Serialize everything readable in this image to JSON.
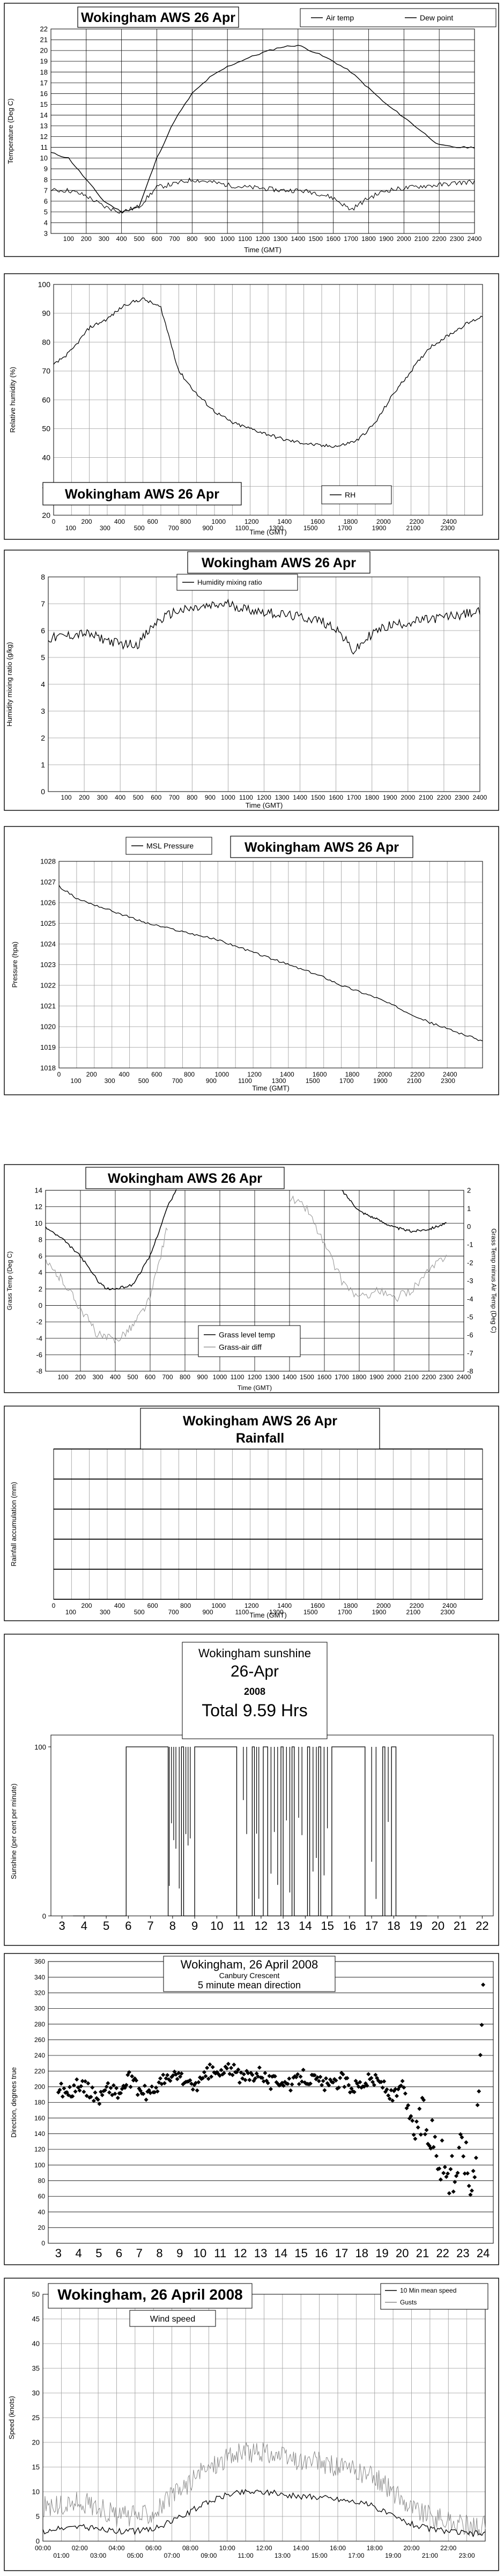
{
  "chart_data": [
    {
      "type": "line",
      "title": "Wokingham AWS 26 Apr",
      "xlabel": "Time (GMT)",
      "ylabel": "Temperature (Deg C)",
      "xlim": [
        0,
        2400
      ],
      "ylim": [
        3,
        22
      ],
      "xticks": [
        "100",
        "300",
        "500",
        "700",
        "900",
        "1100",
        "1300",
        "1500",
        "1700",
        "1900",
        "2100",
        "2300"
      ],
      "xticks2": [
        "200",
        "400",
        "600",
        "800",
        "1000",
        "1200",
        "1400",
        "1600",
        "1800",
        "2000",
        "2200",
        "2400"
      ],
      "yticks": [
        "3",
        "4",
        "5",
        "6",
        "7",
        "8",
        "9",
        "10",
        "11",
        "12",
        "13",
        "14",
        "15",
        "16",
        "17",
        "18",
        "19",
        "20",
        "21",
        "22"
      ],
      "grid": true,
      "legend_position": "top-right",
      "series": [
        {
          "name": "Air temp",
          "color": "#000000",
          "x": [
            0,
            100,
            200,
            300,
            400,
            500,
            600,
            700,
            800,
            900,
            1000,
            1100,
            1200,
            1300,
            1400,
            1500,
            1600,
            1700,
            1800,
            1900,
            2000,
            2100,
            2200,
            2300,
            2400
          ],
          "y": [
            10.5,
            10,
            8,
            6,
            5,
            5.5,
            10,
            13.5,
            16,
            17.5,
            18.5,
            19.2,
            19.8,
            20.3,
            20.5,
            19.8,
            19,
            18,
            16.5,
            15,
            13.8,
            12.5,
            11.2,
            11,
            11
          ]
        },
        {
          "name": "Dew point",
          "color": "#000000",
          "x": [
            0,
            100,
            200,
            300,
            400,
            500,
            600,
            700,
            800,
            900,
            1000,
            1100,
            1200,
            1300,
            1400,
            1500,
            1600,
            1700,
            1800,
            1900,
            2000,
            2100,
            2200,
            2300,
            2400
          ],
          "y": [
            7,
            7,
            6.5,
            5.5,
            5,
            5.5,
            7.3,
            7.6,
            8,
            7.8,
            7.5,
            7.3,
            7.2,
            7,
            7,
            6.8,
            6.3,
            5.2,
            6.3,
            7,
            7.2,
            7.4,
            7.5,
            7.7,
            7.8
          ]
        }
      ]
    },
    {
      "type": "line",
      "title": "Wokingham AWS 26 Apr",
      "xlabel": "Time (GMT)",
      "ylabel": "Relative humidity (%)",
      "xlim": [
        0,
        2400
      ],
      "ylim": [
        20,
        100
      ],
      "xticks": [
        "0",
        "100",
        "200",
        "300",
        "400",
        "500",
        "600",
        "700",
        "800",
        "900",
        "1000",
        "1100",
        "1200",
        "1300",
        "1400",
        "1500",
        "1600",
        "1700",
        "1800",
        "1900",
        "2000",
        "2100",
        "2200",
        "2300",
        "2400"
      ],
      "yticks": [
        "20",
        "30",
        "40",
        "50",
        "60",
        "70",
        "80",
        "90",
        "100"
      ],
      "grid": true,
      "legend_position": "bottom-center",
      "series": [
        {
          "name": "RH",
          "color": "#000000",
          "x": [
            0,
            100,
            200,
            300,
            400,
            500,
            600,
            700,
            800,
            900,
            1000,
            1100,
            1200,
            1300,
            1400,
            1500,
            1600,
            1700,
            1800,
            1900,
            2000,
            2100,
            2200,
            2300,
            2400
          ],
          "y": [
            72,
            77,
            85,
            88,
            93,
            95,
            92,
            70,
            62,
            56,
            52,
            50,
            48,
            46,
            45,
            44,
            44,
            46,
            52,
            62,
            70,
            78,
            82,
            86,
            89
          ]
        }
      ]
    },
    {
      "type": "line",
      "title": "Wokingham AWS 26 Apr",
      "xlabel": "Time (GMT)",
      "ylabel": "Humidity mixing ratio (g/kg)",
      "xlim": [
        0,
        2400
      ],
      "ylim": [
        0,
        8
      ],
      "xticks": [
        "100",
        "300",
        "500",
        "700",
        "900",
        "1100",
        "1300",
        "1500",
        "1700",
        "1900",
        "2100",
        "2300"
      ],
      "xticks2": [
        "200",
        "400",
        "600",
        "800",
        "1000",
        "1200",
        "1400",
        "1600",
        "1800",
        "2000",
        "2200",
        "2400"
      ],
      "yticks": [
        "0",
        "1",
        "2",
        "3",
        "4",
        "5",
        "6",
        "7",
        "8"
      ],
      "grid": true,
      "legend_position": "top-center",
      "series": [
        {
          "name": "Humidity mixing ratio",
          "color": "#000000",
          "x": [
            0,
            100,
            200,
            300,
            400,
            500,
            600,
            700,
            800,
            900,
            1000,
            1100,
            1200,
            1300,
            1400,
            1500,
            1600,
            1700,
            1800,
            1900,
            2000,
            2100,
            2200,
            2300,
            2400
          ],
          "y": [
            5.7,
            5.8,
            5.9,
            5.7,
            5.5,
            5.5,
            6.3,
            6.7,
            6.8,
            6.9,
            7,
            6.8,
            6.7,
            6.6,
            6.5,
            6.4,
            6.1,
            5.2,
            5.9,
            6.2,
            6.3,
            6.4,
            6.5,
            6.6,
            6.7
          ]
        }
      ]
    },
    {
      "type": "line",
      "title": "Wokingham AWS 26 Apr",
      "xlabel": "Time (GMT)",
      "ylabel": "Pressure (hpa)",
      "xlim": [
        0,
        2400
      ],
      "ylim": [
        1018,
        1028
      ],
      "xticks": [
        "0",
        "100",
        "200",
        "300",
        "400",
        "500",
        "600",
        "700",
        "800",
        "900",
        "1000",
        "1100",
        "1200",
        "1300",
        "1400",
        "1500",
        "1600",
        "1700",
        "1800",
        "1900",
        "2000",
        "2100",
        "2200",
        "2300",
        "2400"
      ],
      "yticks": [
        "1018",
        "1019",
        "1020",
        "1021",
        "1022",
        "1023",
        "1024",
        "1025",
        "1026",
        "1027",
        "1028"
      ],
      "grid": true,
      "legend_position": "top-left",
      "series": [
        {
          "name": "MSL Pressure",
          "color": "#000000",
          "x": [
            0,
            100,
            200,
            300,
            400,
            500,
            600,
            700,
            800,
            900,
            1000,
            1100,
            1200,
            1300,
            1400,
            1500,
            1600,
            1700,
            1800,
            1900,
            2000,
            2100,
            2200,
            2300,
            2400
          ],
          "y": [
            1026.8,
            1026.2,
            1025.9,
            1025.6,
            1025.3,
            1025,
            1024.8,
            1024.6,
            1024.4,
            1024.2,
            1023.9,
            1023.6,
            1023.3,
            1023,
            1022.7,
            1022.4,
            1022,
            1021.7,
            1021.4,
            1021,
            1020.6,
            1020.2,
            1019.9,
            1019.6,
            1019.3
          ]
        }
      ]
    },
    {
      "type": "line",
      "title": "Wokingham AWS 26 Apr",
      "xlabel": "Time (GMT)",
      "ylabel": "Grass Temp (Deg C)",
      "ylabel2": "Grass Temp minus Air Temp (Deg C)",
      "xlim": [
        0,
        2400
      ],
      "ylim": [
        -8,
        14
      ],
      "ylim2": [
        -8,
        2
      ],
      "xticks": [
        "100",
        "300",
        "500",
        "700",
        "900",
        "1100",
        "1300",
        "1500",
        "1700",
        "1900",
        "2100",
        "2300"
      ],
      "xticks2": [
        "200",
        "400",
        "600",
        "800",
        "1000",
        "1200",
        "1400",
        "1600",
        "1800",
        "2000",
        "2200",
        "2400"
      ],
      "yticks": [
        "-8",
        "-6",
        "-4",
        "-2",
        "0",
        "2",
        "4",
        "6",
        "8",
        "10",
        "12",
        "14"
      ],
      "yticks2": [
        "-8",
        "-7",
        "-6",
        "-5",
        "-4",
        "-3",
        "-2",
        "-1",
        "0",
        "1",
        "2"
      ],
      "grid": true,
      "legend_position": "bottom-center",
      "series": [
        {
          "name": "Grass level temp",
          "color": "#000000",
          "axis": "left",
          "x": [
            0,
            100,
            200,
            300,
            350,
            400,
            500,
            600,
            700,
            750
          ],
          "y": [
            9.5,
            8,
            6,
            3,
            2,
            2,
            2.5,
            6,
            12,
            14
          ]
        },
        {
          "name": "Grass level temp",
          "color": "#000000",
          "axis": "left",
          "x": [
            1700,
            1800,
            1900,
            2000,
            2100,
            2200,
            2300
          ],
          "y": [
            14,
            11.5,
            10.5,
            9.5,
            9,
            9.3,
            10
          ]
        },
        {
          "name": "Grass-air diff",
          "color": "#9a9a9a",
          "axis": "right",
          "x": [
            0,
            100,
            200,
            300,
            400,
            500,
            600,
            700
          ],
          "y": [
            -2,
            -3,
            -4.5,
            -6,
            -6.3,
            -5.5,
            -4,
            0
          ]
        },
        {
          "name": "Grass-air diff",
          "color": "#9a9a9a",
          "axis": "right",
          "x": [
            1400,
            1500,
            1600,
            1700,
            1800,
            1900,
            2000,
            2100,
            2200,
            2300
          ],
          "y": [
            1.6,
            1,
            -1,
            -3,
            -4,
            -3.5,
            -4,
            -3.5,
            -2.5,
            -1.5
          ]
        }
      ]
    },
    {
      "type": "line",
      "title": "Wokingham AWS 26 Apr",
      "subtitle": "Rainfall",
      "xlabel": "Time (GMT)",
      "ylabel": "Rainfall accumulation (mm)",
      "xlim": [
        0,
        2400
      ],
      "xticks": [
        "0",
        "100",
        "200",
        "300",
        "400",
        "500",
        "600",
        "700",
        "800",
        "900",
        "1000",
        "1100",
        "1200",
        "1300",
        "1400",
        "1500",
        "1600",
        "1700",
        "1800",
        "1900",
        "2000",
        "2100",
        "2200",
        "2300",
        "2400"
      ],
      "grid": true,
      "series": []
    },
    {
      "type": "area",
      "title": "Wokingham sunshine",
      "subtitle": "26-Apr",
      "subtitle2": "2008",
      "annotation": "Total 9.59 Hrs",
      "ylabel": "Sunshine (per cent per minute)",
      "xlim": [
        2.5,
        22.5
      ],
      "ylim": [
        0,
        100
      ],
      "xticks": [
        "3",
        "4",
        "5",
        "6",
        "7",
        "8",
        "9",
        "10",
        "11",
        "12",
        "13",
        "14",
        "15",
        "16",
        "17",
        "18",
        "19",
        "20",
        "21",
        "22"
      ],
      "yticks": [
        "0",
        "100"
      ],
      "grid": false,
      "sunshine_periods": [
        [
          5.9,
          7.8
        ],
        [
          8.4,
          8.5
        ],
        [
          9.0,
          10.9
        ],
        [
          11.6,
          11.7
        ],
        [
          12.1,
          12.3
        ],
        [
          12.9,
          13.0
        ],
        [
          13.4,
          13.5
        ],
        [
          14.1,
          14.2
        ],
        [
          14.6,
          14.7
        ],
        [
          15.2,
          16.7
        ],
        [
          17.5,
          17.6
        ],
        [
          17.9,
          18.1
        ]
      ]
    },
    {
      "type": "scatter",
      "title": "Wokingham,  26 April 2008",
      "subtitle": "Canbury Crescent",
      "legend_label": "5 minute mean direction",
      "ylabel": "Direction, degrees true",
      "xlim": [
        2.5,
        24.5
      ],
      "ylim": [
        0,
        360
      ],
      "xticks": [
        "3",
        "4",
        "5",
        "6",
        "7",
        "8",
        "9",
        "10",
        "11",
        "12",
        "13",
        "14",
        "15",
        "16",
        "17",
        "18",
        "19",
        "20",
        "21",
        "22",
        "23",
        "24"
      ],
      "yticks": [
        "0",
        "20",
        "40",
        "60",
        "80",
        "100",
        "120",
        "140",
        "160",
        "180",
        "200",
        "220",
        "240",
        "260",
        "280",
        "300",
        "320",
        "340",
        "360"
      ],
      "grid": true,
      "x": [
        3,
        3.5,
        4,
        4.5,
        5,
        5.5,
        6,
        6.5,
        7,
        7.5,
        8,
        8.5,
        9,
        9.5,
        10,
        10.5,
        11,
        11.5,
        12,
        12.5,
        13,
        13.5,
        14,
        14.5,
        15,
        15.5,
        16,
        16.5,
        17,
        17.5,
        18,
        18.5,
        19,
        19.5,
        20,
        20.5,
        21,
        21.5,
        22,
        22.5,
        23,
        23.5,
        24
      ],
      "y": [
        200,
        190,
        205,
        195,
        185,
        200,
        190,
        210,
        195,
        190,
        205,
        210,
        215,
        200,
        205,
        220,
        215,
        225,
        210,
        215,
        220,
        205,
        210,
        200,
        215,
        210,
        205,
        200,
        210,
        200,
        205,
        210,
        205,
        185,
        200,
        150,
        160,
        140,
        100,
        80,
        130,
        60,
        320
      ]
    },
    {
      "type": "line",
      "title": "Wokingham,  26 April 2008",
      "subtitle": "Wind speed",
      "ylabel": "Speed (knots)",
      "xlim": [
        0,
        24
      ],
      "ylim": [
        0,
        50
      ],
      "xticks": [
        "00:00",
        "02:00",
        "04:00",
        "06:00",
        "08:00",
        "10:00",
        "12:00",
        "14:00",
        "16:00",
        "18:00",
        "20:00",
        "22:00"
      ],
      "xticks2": [
        "01:00",
        "03:00",
        "05:00",
        "07:00",
        "09:00",
        "11:00",
        "13:00",
        "15:00",
        "17:00",
        "19:00",
        "21:00",
        "23:00"
      ],
      "yticks": [
        "0",
        "5",
        "10",
        "15",
        "20",
        "25",
        "30",
        "35",
        "40",
        "45",
        "50"
      ],
      "grid": true,
      "legend_position": "top-right",
      "series": [
        {
          "name": "10 Min mean speed",
          "color": "#000000",
          "x": [
            0,
            1,
            2,
            3,
            4,
            5,
            6,
            7,
            8,
            9,
            10,
            11,
            12,
            13,
            14,
            15,
            16,
            17,
            18,
            19,
            20,
            21,
            22,
            23,
            24
          ],
          "y": [
            2,
            2.5,
            3,
            2.5,
            2,
            2,
            2.5,
            4,
            6,
            8,
            9.5,
            10,
            10,
            9.5,
            9,
            9,
            8.5,
            8,
            7,
            5,
            3.5,
            2.5,
            2,
            1.5,
            1.5
          ]
        },
        {
          "name": "Gusts",
          "color": "#8a8a8a",
          "x": [
            0,
            1,
            2,
            3,
            4,
            5,
            6,
            7,
            8,
            9,
            10,
            11,
            12,
            13,
            14,
            15,
            16,
            17,
            18,
            19,
            20,
            21,
            22,
            23,
            24
          ],
          "y": [
            7,
            7,
            8,
            7,
            5,
            5,
            6,
            9,
            12,
            15,
            17,
            18,
            18,
            17,
            16,
            16,
            15,
            14,
            13,
            10,
            7,
            5,
            4,
            3,
            3
          ]
        }
      ]
    }
  ]
}
